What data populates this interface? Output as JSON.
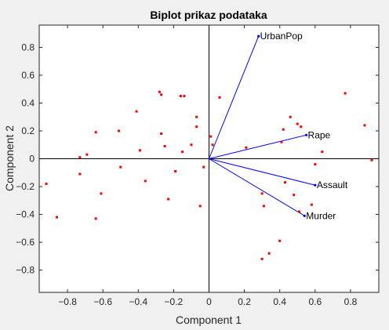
{
  "chart_data": {
    "type": "scatter",
    "title": "Biplot prikaz podataka",
    "xlabel": "Component 1",
    "ylabel": "Component 2",
    "xlim": [
      -0.96,
      0.96
    ],
    "ylim": [
      -0.96,
      0.96
    ],
    "xticks": [
      -0.8,
      -0.6,
      -0.4,
      -0.2,
      0,
      0.2,
      0.4,
      0.6,
      0.8
    ],
    "yticks": [
      -0.8,
      -0.6,
      -0.4,
      -0.2,
      0,
      0.2,
      0.4,
      0.6,
      0.8
    ],
    "grid": false,
    "vectors": [
      {
        "name": "UrbanPop",
        "x": 0.28,
        "y": 0.88
      },
      {
        "name": "Rape",
        "x": 0.55,
        "y": 0.17
      },
      {
        "name": "Assault",
        "x": 0.6,
        "y": -0.19
      },
      {
        "name": "Murder",
        "x": 0.54,
        "y": -0.41
      }
    ],
    "points": [
      [
        -0.92,
        -0.18
      ],
      [
        -0.86,
        -0.42
      ],
      [
        -0.73,
        0.01
      ],
      [
        -0.73,
        -0.11
      ],
      [
        -0.69,
        0.03
      ],
      [
        -0.64,
        0.19
      ],
      [
        -0.64,
        -0.43
      ],
      [
        -0.61,
        -0.25
      ],
      [
        -0.51,
        0.2
      ],
      [
        -0.5,
        -0.06
      ],
      [
        -0.41,
        0.34
      ],
      [
        -0.39,
        0.06
      ],
      [
        -0.36,
        -0.16
      ],
      [
        -0.28,
        0.48
      ],
      [
        -0.27,
        0.46
      ],
      [
        -0.27,
        0.18
      ],
      [
        -0.25,
        0.09
      ],
      [
        -0.23,
        -0.29
      ],
      [
        -0.19,
        -0.09
      ],
      [
        -0.16,
        0.45
      ],
      [
        -0.15,
        0.05
      ],
      [
        -0.14,
        0.45
      ],
      [
        -0.1,
        0.1
      ],
      [
        -0.07,
        0.3
      ],
      [
        -0.07,
        0.23
      ],
      [
        -0.05,
        -0.34
      ],
      [
        -0.03,
        -0.06
      ],
      [
        0.01,
        0.16
      ],
      [
        0.02,
        0.1
      ],
      [
        0.06,
        0.44
      ],
      [
        0.21,
        0.08
      ],
      [
        0.3,
        -0.25
      ],
      [
        0.3,
        -0.72
      ],
      [
        0.31,
        -0.34
      ],
      [
        0.34,
        -0.68
      ],
      [
        0.4,
        -0.59
      ],
      [
        0.41,
        0.12
      ],
      [
        0.42,
        0.21
      ],
      [
        0.43,
        -0.17
      ],
      [
        0.46,
        0.3
      ],
      [
        0.48,
        -0.26
      ],
      [
        0.5,
        0.25
      ],
      [
        0.51,
        -0.38
      ],
      [
        0.52,
        0.23
      ],
      [
        0.58,
        -0.33
      ],
      [
        0.6,
        -0.04
      ],
      [
        0.64,
        0.05
      ],
      [
        0.77,
        0.47
      ],
      [
        0.88,
        0.24
      ],
      [
        0.92,
        -0.01
      ]
    ],
    "colors": {
      "vector": "#0000ff",
      "point": "#ff0000",
      "axis_line": "#000000",
      "plot_background": "#ffffff",
      "figure_background": "#f0f0f0"
    }
  }
}
